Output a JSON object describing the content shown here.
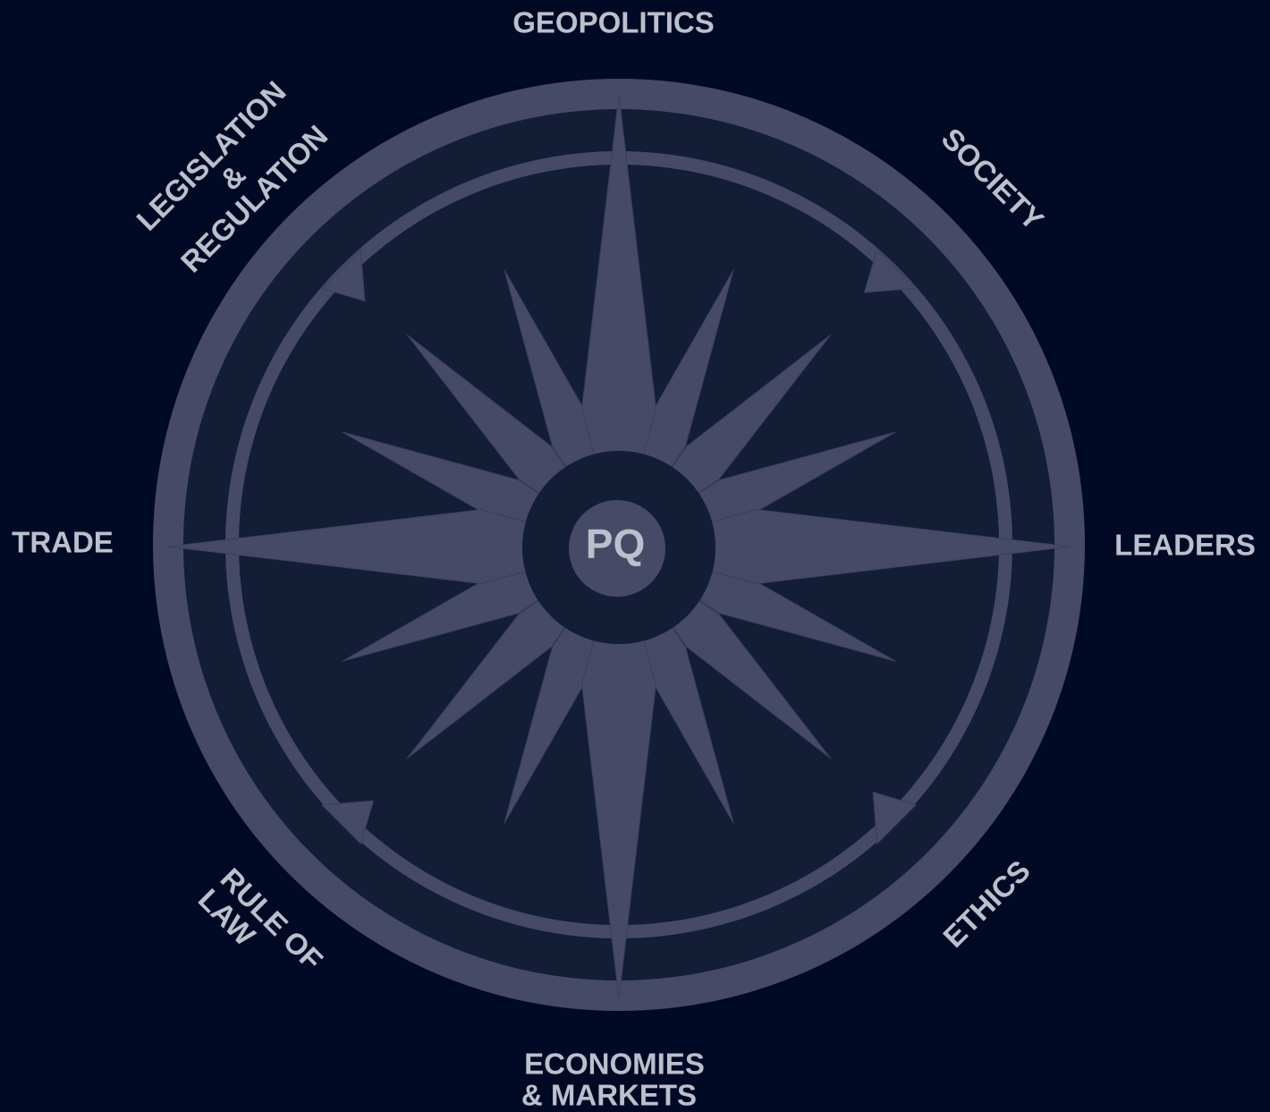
{
  "center": {
    "label": "PQ"
  },
  "nodes": [
    {
      "lines": [
        "GEOPOLITICS"
      ]
    },
    {
      "lines": [
        "SOCIETY"
      ]
    },
    {
      "lines": [
        "LEADERS"
      ]
    },
    {
      "lines": [
        "ETHICS"
      ]
    },
    {
      "lines": [
        "ECONOMIES",
        "& MARKETS"
      ]
    },
    {
      "lines": [
        "RULE OF",
        "LAW"
      ]
    },
    {
      "lines": [
        "TRADE"
      ]
    },
    {
      "lines": [
        "LEGISLATION",
        "&",
        "REGULATION"
      ]
    }
  ]
}
